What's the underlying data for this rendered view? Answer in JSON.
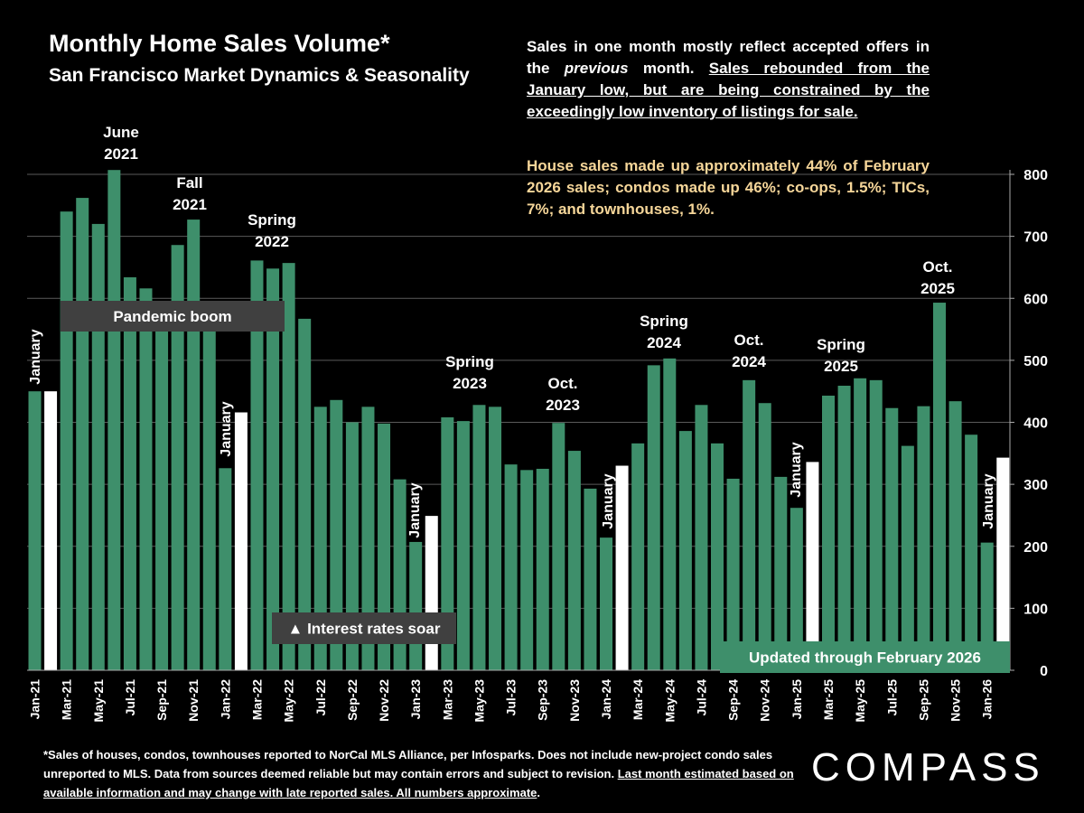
{
  "chart_data": {
    "type": "bar",
    "title": "Monthly Home Sales Volume*",
    "subtitle": "San Francisco Market Dynamics & Seasonality",
    "categories": [
      "Jan-21",
      null,
      "Mar-21",
      null,
      "May-21",
      null,
      "Jul-21",
      null,
      "Sep-21",
      null,
      "Nov-21",
      null,
      "Jan-22",
      null,
      "Mar-22",
      null,
      "May-22",
      null,
      "Jul-22",
      null,
      "Sep-22",
      null,
      "Nov-22",
      null,
      "Jan-23",
      null,
      "Mar-23",
      null,
      "May-23",
      null,
      "Jul-23",
      null,
      "Sep-23",
      null,
      "Nov-23",
      null,
      "Jan-24",
      null,
      "Mar-24",
      null,
      "May-24",
      null,
      "Jul-24",
      null,
      "Sep-24",
      null,
      "Nov-24",
      null,
      "Jan-25",
      null,
      "Mar-25",
      null,
      "May-25",
      null,
      "Jul-25",
      null,
      "Sep-25",
      null,
      "Nov-25",
      null,
      "Jan-26",
      null
    ],
    "values": [
      450,
      450,
      740,
      762,
      720,
      807,
      634,
      616,
      570,
      686,
      727,
      550,
      326,
      416,
      661,
      648,
      657,
      567,
      425,
      436,
      400,
      425,
      398,
      308,
      207,
      249,
      408,
      402,
      428,
      425,
      332,
      323,
      325,
      399,
      354,
      293,
      214,
      330,
      366,
      492,
      503,
      386,
      428,
      366,
      309,
      468,
      431,
      312,
      262,
      336,
      443,
      459,
      471,
      468,
      423,
      362,
      426,
      593,
      434,
      380,
      206,
      343
    ],
    "colors": [
      "#3e8f6b",
      "#ffffff",
      "#3e8f6b",
      "#3e8f6b",
      "#3e8f6b",
      "#3e8f6b",
      "#3e8f6b",
      "#3e8f6b",
      "#3e8f6b",
      "#3e8f6b",
      "#3e8f6b",
      "#3e8f6b",
      "#3e8f6b",
      "#ffffff",
      "#3e8f6b",
      "#3e8f6b",
      "#3e8f6b",
      "#3e8f6b",
      "#3e8f6b",
      "#3e8f6b",
      "#3e8f6b",
      "#3e8f6b",
      "#3e8f6b",
      "#3e8f6b",
      "#3e8f6b",
      "#ffffff",
      "#3e8f6b",
      "#3e8f6b",
      "#3e8f6b",
      "#3e8f6b",
      "#3e8f6b",
      "#3e8f6b",
      "#3e8f6b",
      "#3e8f6b",
      "#3e8f6b",
      "#3e8f6b",
      "#3e8f6b",
      "#ffffff",
      "#3e8f6b",
      "#3e8f6b",
      "#3e8f6b",
      "#3e8f6b",
      "#3e8f6b",
      "#3e8f6b",
      "#3e8f6b",
      "#3e8f6b",
      "#3e8f6b",
      "#3e8f6b",
      "#3e8f6b",
      "#ffffff",
      "#3e8f6b",
      "#3e8f6b",
      "#3e8f6b",
      "#3e8f6b",
      "#3e8f6b",
      "#3e8f6b",
      "#3e8f6b",
      "#3e8f6b",
      "#3e8f6b",
      "#3e8f6b",
      "#3e8f6b",
      "#ffffff"
    ],
    "ylim": [
      0,
      800
    ],
    "yticks": [
      0,
      100,
      200,
      300,
      400,
      500,
      600,
      700,
      800
    ],
    "grid": true,
    "y_axis_side": "right",
    "annotations": [
      {
        "lines": [
          "June",
          "2021"
        ]
      },
      {
        "lines": [
          "Fall",
          "2021"
        ]
      },
      {
        "lines": [
          "Spring",
          "2022"
        ]
      },
      {
        "lines": [
          "Spring",
          "2023"
        ]
      },
      {
        "lines": [
          "Oct.",
          "2023"
        ]
      },
      {
        "lines": [
          "Spring",
          "2024"
        ]
      },
      {
        "lines": [
          "Oct.",
          "2024"
        ]
      },
      {
        "lines": [
          "Spring",
          "2025"
        ]
      },
      {
        "lines": [
          "Oct.",
          "2025"
        ]
      }
    ],
    "vertical_annotations": [
      "January",
      "January",
      "January",
      "January",
      "January",
      "January"
    ],
    "boxes": [
      {
        "text": "Pandemic boom",
        "color": "#404040"
      },
      {
        "text": "▲ Interest rates soar",
        "color": "#404040"
      },
      {
        "text": "Updated through February 2026",
        "color": "#3e8f6b"
      }
    ]
  },
  "notes": {
    "paragraph1": [
      "Sales in one month mostly reflect accepted offers in the ",
      "previous",
      " month. ",
      "Sales rebounded from the January low, but are being constrained by the exceedingly low inventory of listings for sale."
    ],
    "paragraph2": "House sales made up approximately 44% of February 2026 sales; condos made up 46%; co-ops, 1.5%; TICs, 7%; and townhouses, 1%."
  },
  "footnote": [
    "*Sales of houses, condos, townhouses reported to NorCal MLS Alliance, per Infosparks. Does not include new-project condo sales unreported to MLS. Data from sources deemed reliable but may contain errors and subject to revision. ",
    "Last month estimated based on available information and may change with late reported sales. All numbers approximate"
  ],
  "footnote_end": ".",
  "logo": "COMPASS"
}
